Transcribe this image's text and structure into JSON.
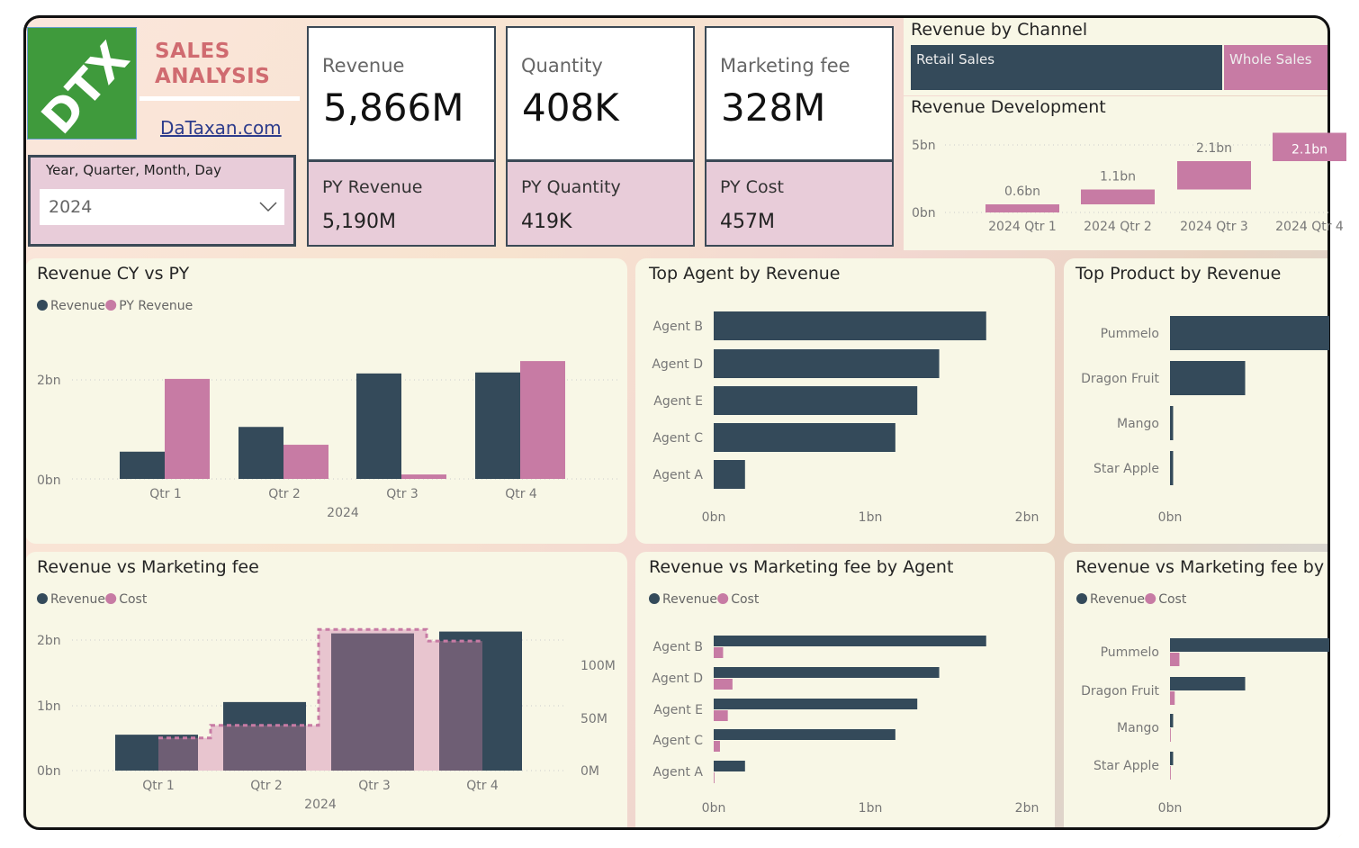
{
  "header": {
    "logo_text": "DTX",
    "title_line1": "SALES",
    "title_line2": "ANALYSIS",
    "link": "DaTaxan.com"
  },
  "slicer": {
    "label": "Year, Quarter, Month, Day",
    "value": "2024"
  },
  "kpis": [
    {
      "label": "Revenue",
      "value": "5,866M",
      "py_label": "PY Revenue",
      "py_value": "5,190M"
    },
    {
      "label": "Quantity",
      "value": "408K",
      "py_label": "PY Quantity",
      "py_value": "419K"
    },
    {
      "label": "Marketing fee",
      "value": "328M",
      "py_label": "PY Cost",
      "py_value": "457M"
    }
  ],
  "channel": {
    "title": "Revenue by Channel",
    "items": [
      "Retail Sales",
      "Whole Sales"
    ]
  },
  "colors": {
    "revenue": "#344a5a",
    "secondary": "#c77ba4",
    "cost_area": "#e8c5cf",
    "overlap": "#6e5e74"
  },
  "chart_data": [
    {
      "id": "rev_dev",
      "type": "waterfall",
      "title": "Revenue Development",
      "categories": [
        "2024 Qtr 1",
        "2024 Qtr 2",
        "2024 Qtr 3",
        "2024 Qtr 4"
      ],
      "values": [
        0.6,
        1.1,
        2.1,
        2.1
      ],
      "data_labels": [
        "0.6bn",
        "1.1bn",
        "2.1bn",
        "2.1bn"
      ],
      "y_ticks": [
        "0bn",
        "5bn"
      ],
      "unit": "bn"
    },
    {
      "id": "cy_py",
      "type": "bar",
      "title": "Revenue CY vs PY",
      "categories": [
        "Qtr 1",
        "Qtr 2",
        "Qtr 3",
        "Qtr 4"
      ],
      "xlabel": "2024",
      "series": [
        {
          "name": "Revenue",
          "values": [
            0.55,
            1.05,
            2.13,
            2.15
          ]
        },
        {
          "name": "PY Revenue",
          "values": [
            2.02,
            0.69,
            0.09,
            2.38
          ]
        }
      ],
      "y_ticks": [
        "0bn",
        "2bn"
      ],
      "unit": "bn"
    },
    {
      "id": "top_agent",
      "type": "bar",
      "orientation": "horizontal",
      "title": "Top Agent by Revenue",
      "categories": [
        "Agent B",
        "Agent D",
        "Agent E",
        "Agent C",
        "Agent A"
      ],
      "values": [
        1.74,
        1.44,
        1.3,
        1.16,
        0.2
      ],
      "x_ticks": [
        "0bn",
        "1bn",
        "2bn"
      ],
      "unit": "bn"
    },
    {
      "id": "top_product",
      "type": "bar",
      "orientation": "horizontal",
      "title": "Top Product by Revenue",
      "categories": [
        "Pummelo",
        "Dragon Fruit",
        "Mango",
        "Star Apple"
      ],
      "values": [
        5.3,
        0.48,
        0.02,
        0.02
      ],
      "x_ticks": [
        "0bn"
      ],
      "unit": "bn"
    },
    {
      "id": "rev_mkt",
      "type": "bar+step-area",
      "title": "Revenue vs Marketing fee",
      "categories": [
        "Qtr 1",
        "Qtr 2",
        "Qtr 3",
        "Qtr 4"
      ],
      "xlabel": "2024",
      "series": [
        {
          "name": "Revenue",
          "axis": "left",
          "unit": "bn",
          "values": [
            0.55,
            1.05,
            2.1,
            2.13
          ]
        },
        {
          "name": "Cost",
          "axis": "right",
          "unit": "M",
          "values": [
            31,
            43,
            134,
            123
          ]
        }
      ],
      "y_ticks": [
        "0bn",
        "1bn",
        "2bn"
      ],
      "y2_ticks": [
        "0M",
        "50M",
        "100M"
      ]
    },
    {
      "id": "rev_mkt_agent",
      "type": "bar",
      "orientation": "horizontal",
      "title": "Revenue vs Marketing fee by Agent",
      "categories": [
        "Agent B",
        "Agent D",
        "Agent E",
        "Agent C",
        "Agent A"
      ],
      "series": [
        {
          "name": "Revenue",
          "values": [
            1.74,
            1.44,
            1.3,
            1.16,
            0.2
          ]
        },
        {
          "name": "Cost",
          "values": [
            0.06,
            0.12,
            0.09,
            0.04,
            0.005
          ]
        }
      ],
      "x_ticks": [
        "0bn",
        "1bn",
        "2bn"
      ],
      "unit": "bn"
    },
    {
      "id": "rev_mkt_product",
      "type": "bar",
      "orientation": "horizontal",
      "title": "Revenue vs Marketing fee by",
      "categories": [
        "Pummelo",
        "Dragon Fruit",
        "Mango",
        "Star Apple"
      ],
      "series": [
        {
          "name": "Revenue",
          "values": [
            5.3,
            0.48,
            0.02,
            0.02
          ]
        },
        {
          "name": "Cost",
          "values": [
            0.06,
            0.03,
            0.005,
            0.005
          ]
        }
      ],
      "x_ticks": [
        "0bn"
      ],
      "unit": "bn"
    }
  ]
}
